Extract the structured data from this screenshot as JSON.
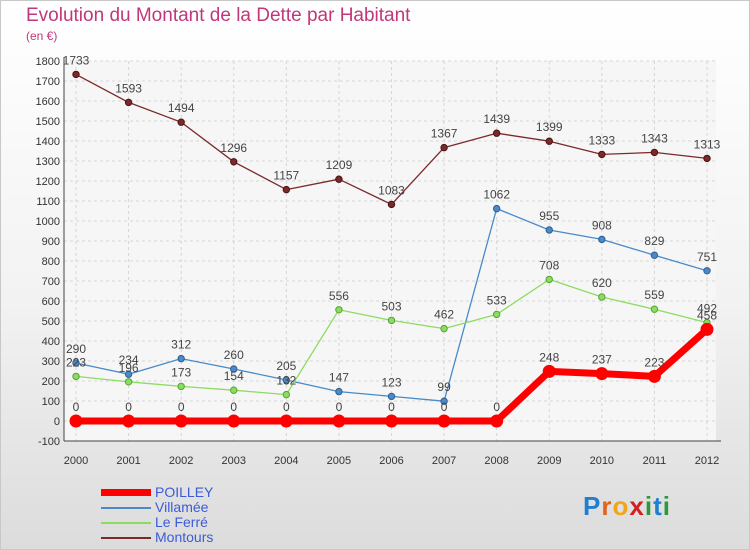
{
  "chart_data": {
    "type": "line",
    "title": "Evolution du Montant de la Dette par Habitant",
    "subtitle": "(en €)",
    "x": [
      "2000",
      "2001",
      "2002",
      "2003",
      "2004",
      "2005",
      "2006",
      "2007",
      "2008",
      "2009",
      "2010",
      "2011",
      "2012"
    ],
    "ylim": [
      -100,
      1800
    ],
    "yticks": [
      -100,
      0,
      100,
      200,
      300,
      400,
      500,
      600,
      700,
      800,
      900,
      1000,
      1100,
      1200,
      1300,
      1400,
      1500,
      1600,
      1700,
      1800
    ],
    "grid": true,
    "legend_position": "bottom-left",
    "series": [
      {
        "name": "Montours",
        "color": "#7a2a2a",
        "values": [
          1733,
          1593,
          1494,
          1296,
          1157,
          1209,
          1083,
          1367,
          1439,
          1399,
          1333,
          1343,
          1313
        ]
      },
      {
        "name": "Villamée",
        "color": "#4a8ac8",
        "values": [
          290,
          234,
          312,
          260,
          205,
          147,
          123,
          99,
          1062,
          955,
          908,
          829,
          751
        ]
      },
      {
        "name": "Le Ferré",
        "color": "#8cdc60",
        "values": [
          223,
          196,
          173,
          154,
          132,
          556,
          503,
          462,
          533,
          708,
          620,
          559,
          492
        ]
      },
      {
        "name": "POILLEY",
        "color": "#ff0000",
        "values": [
          0,
          0,
          0,
          0,
          0,
          0,
          0,
          0,
          0,
          248,
          237,
          223,
          458
        ]
      }
    ]
  },
  "legend": [
    {
      "name": "POILLEY",
      "color": "#ff0000"
    },
    {
      "name": "Villamée",
      "color": "#4a8ac8"
    },
    {
      "name": "Le Ferré",
      "color": "#8cdc60"
    },
    {
      "name": "Montours",
      "color": "#7a2a2a"
    }
  ],
  "brand": {
    "letters": [
      "P",
      "r",
      "o",
      "x",
      "i",
      "t",
      "i"
    ]
  }
}
